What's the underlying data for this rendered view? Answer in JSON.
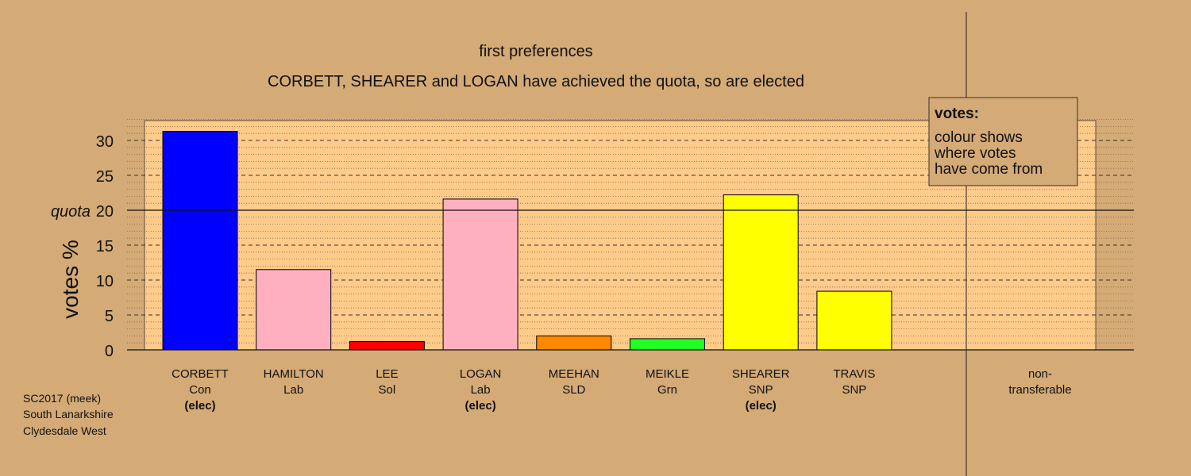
{
  "chart_data": {
    "type": "bar",
    "title": "first preferences",
    "subtitle": "CORBETT, SHEARER and LOGAN have achieved the quota, so are elected",
    "ylabel": "votes %",
    "quota_label": "quota",
    "quota": 20,
    "ylim": [
      0,
      33
    ],
    "yticks": [
      0,
      5,
      10,
      15,
      20,
      25,
      30
    ],
    "grid": true,
    "categories": [
      {
        "name": "CORBETT",
        "party": "Con",
        "status": "(elec)",
        "value": 31.3,
        "color": "#0000ff"
      },
      {
        "name": "HAMILTON",
        "party": "Lab",
        "status": "",
        "value": 11.5,
        "color": "#ffb0c0"
      },
      {
        "name": "LEE",
        "party": "Sol",
        "status": "",
        "value": 1.2,
        "color": "#ff0000"
      },
      {
        "name": "LOGAN",
        "party": "Lab",
        "status": "(elec)",
        "value": 21.6,
        "color": "#ffb0c0"
      },
      {
        "name": "MEEHAN",
        "party": "SLD",
        "status": "",
        "value": 2.0,
        "color": "#ff8800"
      },
      {
        "name": "MEIKLE",
        "party": "Grn",
        "status": "",
        "value": 1.6,
        "color": "#22ff22"
      },
      {
        "name": "SHEARER",
        "party": "SNP",
        "status": "(elec)",
        "value": 22.2,
        "color": "#ffff00"
      },
      {
        "name": "TRAVIS",
        "party": "SNP",
        "status": "",
        "value": 8.4,
        "color": "#ffff00"
      }
    ],
    "nontransferable": {
      "label_line1": "non-",
      "label_line2": "transferable",
      "value": 0.0
    },
    "legend": {
      "title": "votes:",
      "lines": [
        "colour shows",
        "where votes",
        "have come from"
      ],
      "placement": "top-right"
    }
  },
  "colors": {
    "background": "#d4aa76",
    "plot_background": "#ffcb8a",
    "edge": "#000000"
  },
  "footer": {
    "line1": "SC2017 (meek)",
    "line2": "South Lanarkshire",
    "line3": "Clydesdale West"
  }
}
